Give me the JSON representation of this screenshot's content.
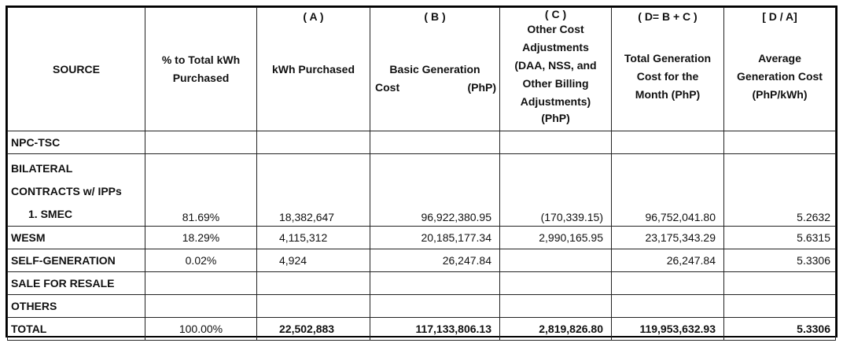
{
  "header": {
    "source": "SOURCE",
    "pct": [
      "% to Total kWh",
      "Purchased"
    ],
    "col_a": {
      "tag": "( A )",
      "label": "kWh Purchased"
    },
    "col_b": {
      "tag": "( B )",
      "line1": "Basic Generation",
      "line2_left": "Cost",
      "line2_right": "(PhP)"
    },
    "col_c": {
      "tag": "( C )",
      "lines": [
        "Other Cost",
        "Adjustments",
        "(DAA, NSS, and",
        "Other Billing",
        "Adjustments)",
        "(PhP)"
      ]
    },
    "col_d": {
      "tag": "( D= B + C )",
      "lines": [
        "Total Generation",
        "Cost for the",
        "Month (PhP)"
      ]
    },
    "col_avg": {
      "tag": "[ D / A]",
      "lines": [
        "Average",
        "Generation Cost",
        "(PhP/kWh)"
      ]
    }
  },
  "rows": {
    "npc": {
      "source": "NPC-TSC"
    },
    "bilateral": {
      "line1": "BILATERAL",
      "line2": "CONTRACTS w/ IPPs"
    },
    "smec": {
      "source": "1.  SMEC",
      "pct": "81.69%",
      "kwh": "18,382,647",
      "basic": "96,922,380.95",
      "other": "(170,339.15)",
      "total": "96,752,041.80",
      "avg": "5.2632"
    },
    "wesm": {
      "source": "WESM",
      "pct": "18.29%",
      "kwh": "4,115,312",
      "basic": "20,185,177.34",
      "other": "2,990,165.95",
      "total": "23,175,343.29",
      "avg": "5.6315"
    },
    "selfgen": {
      "source": "SELF-GENERATION",
      "pct": "0.02%",
      "kwh": "4,924",
      "basic": "26,247.84",
      "other": "",
      "total": "26,247.84",
      "avg": "5.3306"
    },
    "resale": {
      "source": "SALE FOR RESALE"
    },
    "others": {
      "source": "OTHERS"
    },
    "total": {
      "source": "TOTAL",
      "pct": "100.00%",
      "kwh": "22,502,883",
      "basic": "117,133,806.13",
      "other": "2,819,826.80",
      "total": "119,953,632.93",
      "avg": "5.3306"
    }
  }
}
